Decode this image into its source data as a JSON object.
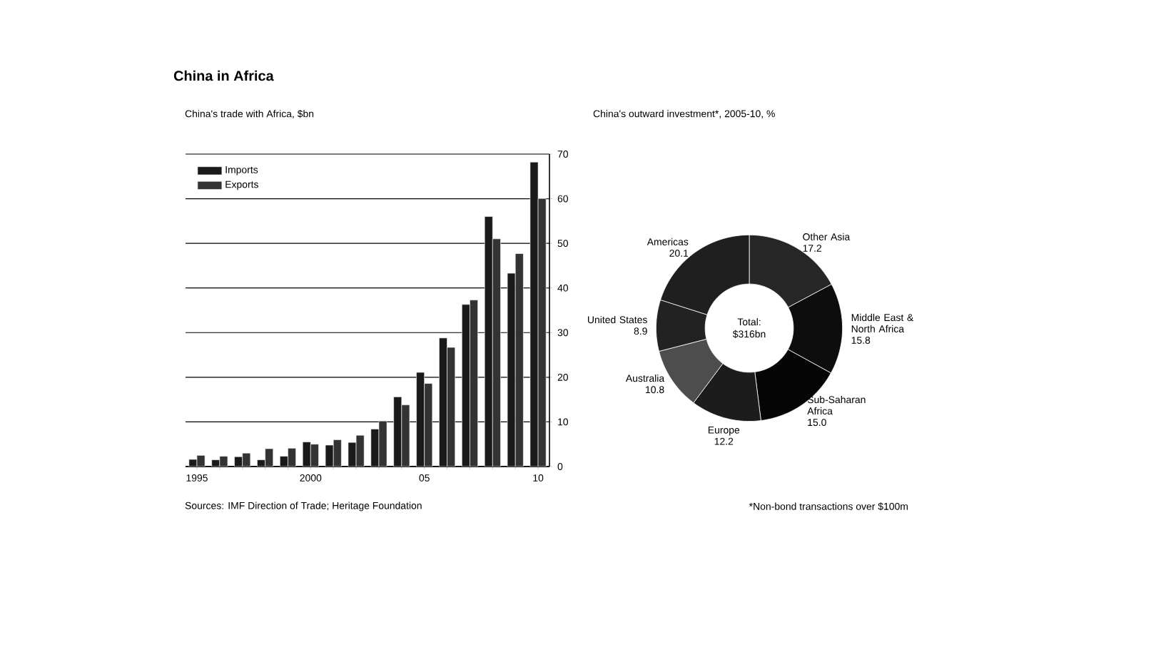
{
  "chart_data": [
    {
      "type": "bar",
      "title": "China in Africa",
      "subtitle": "China's trade with Africa, $bn",
      "x": [
        1995,
        1996,
        1997,
        1998,
        1999,
        2000,
        2001,
        2002,
        2003,
        2004,
        2005,
        2006,
        2007,
        2008,
        2009,
        2010
      ],
      "series": [
        {
          "name": "Imports",
          "color": "#1a1a1a",
          "values": [
            1.6,
            1.5,
            2.2,
            1.5,
            2.3,
            5.5,
            4.8,
            5.4,
            8.4,
            15.6,
            21.1,
            28.8,
            36.3,
            56.0,
            43.3,
            68.2
          ]
        },
        {
          "name": "Exports",
          "color": "#333333",
          "values": [
            2.5,
            2.3,
            3.0,
            4.0,
            4.1,
            5.0,
            6.0,
            7.0,
            10.2,
            13.8,
            18.6,
            26.7,
            37.3,
            51.0,
            47.7,
            60.0
          ]
        }
      ],
      "xlim": [
        1994.5,
        2010.5
      ],
      "xticks": [
        {
          "value": 1995,
          "label": "1995"
        },
        {
          "value": 1996,
          "label": null
        },
        {
          "value": 1997,
          "label": null
        },
        {
          "value": 1998,
          "label": null
        },
        {
          "value": 1999,
          "label": null
        },
        {
          "value": 2000,
          "label": "2000"
        },
        {
          "value": 2001,
          "label": null
        },
        {
          "value": 2002,
          "label": null
        },
        {
          "value": 2003,
          "label": null
        },
        {
          "value": 2004,
          "label": null
        },
        {
          "value": 2005,
          "label": "05"
        },
        {
          "value": 2006,
          "label": null
        },
        {
          "value": 2007,
          "label": null
        },
        {
          "value": 2008,
          "label": null
        },
        {
          "value": 2009,
          "label": null
        },
        {
          "value": 2010,
          "label": "10"
        }
      ],
      "ylim": [
        0,
        70
      ],
      "yticks": [
        0,
        10,
        20,
        30,
        40,
        50,
        60,
        70
      ],
      "grid": "y",
      "legend": "top left",
      "annotations": [
        "Sources: IMF Direction of Trade; Heritage Foundation"
      ]
    },
    {
      "type": "donut",
      "title": "China's outward investment*, 2005-10, %",
      "categories": [
        "Other Asia",
        "Middle East & North Africa",
        "Sub-Saharan Africa",
        "Europe",
        "Australia",
        "United States",
        "Americas"
      ],
      "values": [
        17.2,
        15.8,
        15.0,
        12.2,
        10.8,
        8.9,
        20.1
      ],
      "colors": [
        "#262626",
        "#0d0d0d",
        "#050505",
        "#1c1c1c",
        "#4d4d4d",
        "#222222",
        "#1f1f1f"
      ],
      "value_labels": [
        "17.2",
        "15.8",
        "15.0",
        "12.2",
        "10.8",
        "8.9",
        "20.1"
      ],
      "annotations": [
        "Total: $316bn",
        "*Non-bond transactions over $100m"
      ]
    }
  ]
}
